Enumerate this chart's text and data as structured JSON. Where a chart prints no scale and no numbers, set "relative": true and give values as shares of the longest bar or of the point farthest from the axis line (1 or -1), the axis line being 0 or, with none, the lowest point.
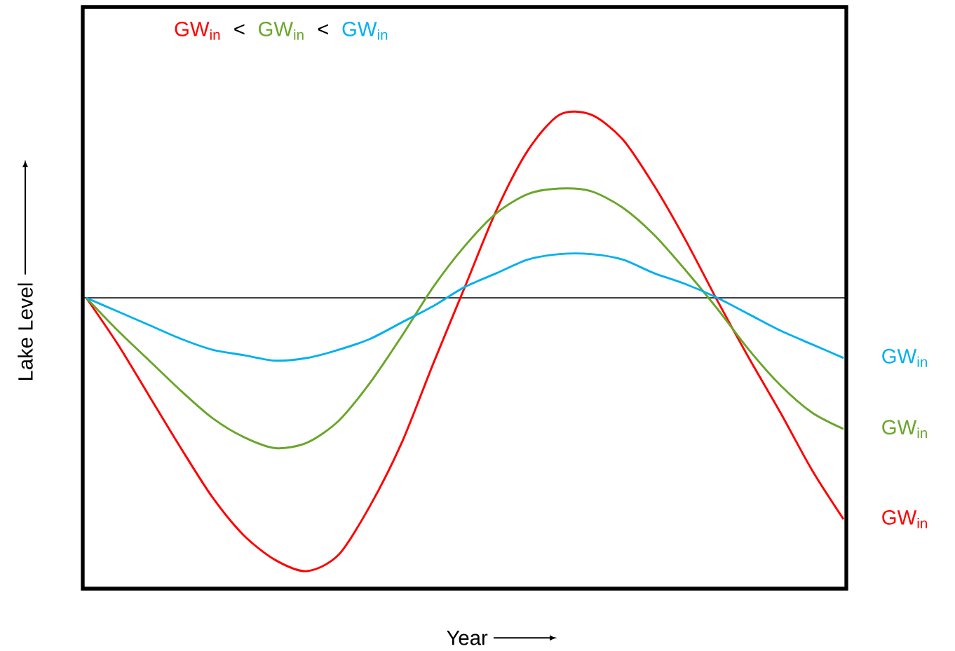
{
  "chart_data": {
    "type": "line",
    "relative": true,
    "xlabel": "Year",
    "ylabel": "Lake Level",
    "annotations": [
      "GW$_{in}$",
      "<",
      "GW$_{in}$",
      "<",
      "GW$_{in}$"
    ],
    "categories": [
      null,
      null,
      null,
      null,
      null,
      null,
      null,
      null,
      null,
      null,
      null,
      null,
      null,
      null,
      null,
      null,
      null,
      null,
      null,
      null,
      null,
      null,
      null,
      null,
      null
    ],
    "series": [
      {
        "name": "GW$_{in}$",
        "color": "#ff0000",
        "values": [
          0,
          -0.17,
          -0.36,
          -0.55,
          -0.73,
          -0.87,
          -0.96,
          -1.0,
          -0.94,
          -0.76,
          -0.53,
          -0.24,
          0.04,
          0.32,
          0.54,
          0.67,
          0.67,
          0.58,
          0.41,
          0.21,
          -0.01,
          -0.22,
          -0.42,
          -0.63,
          -0.81
        ]
      },
      {
        "name": "GW$_{in}$",
        "color": "#6aa62a",
        "values": [
          0,
          -0.12,
          -0.23,
          -0.34,
          -0.44,
          -0.51,
          -0.55,
          -0.53,
          -0.45,
          -0.31,
          -0.14,
          0.04,
          0.19,
          0.31,
          0.38,
          0.4,
          0.39,
          0.33,
          0.23,
          0.1,
          -0.04,
          -0.19,
          -0.32,
          -0.42,
          -0.48
        ]
      },
      {
        "name": "GW$_{in}$",
        "color": "#00b0f0",
        "values": [
          0,
          -0.05,
          -0.1,
          -0.15,
          -0.19,
          -0.21,
          -0.23,
          -0.22,
          -0.19,
          -0.15,
          -0.09,
          -0.03,
          0.04,
          0.09,
          0.14,
          0.16,
          0.16,
          0.14,
          0.09,
          0.05,
          0,
          -0.06,
          -0.12,
          -0.17,
          -0.22
        ]
      }
    ]
  }
}
